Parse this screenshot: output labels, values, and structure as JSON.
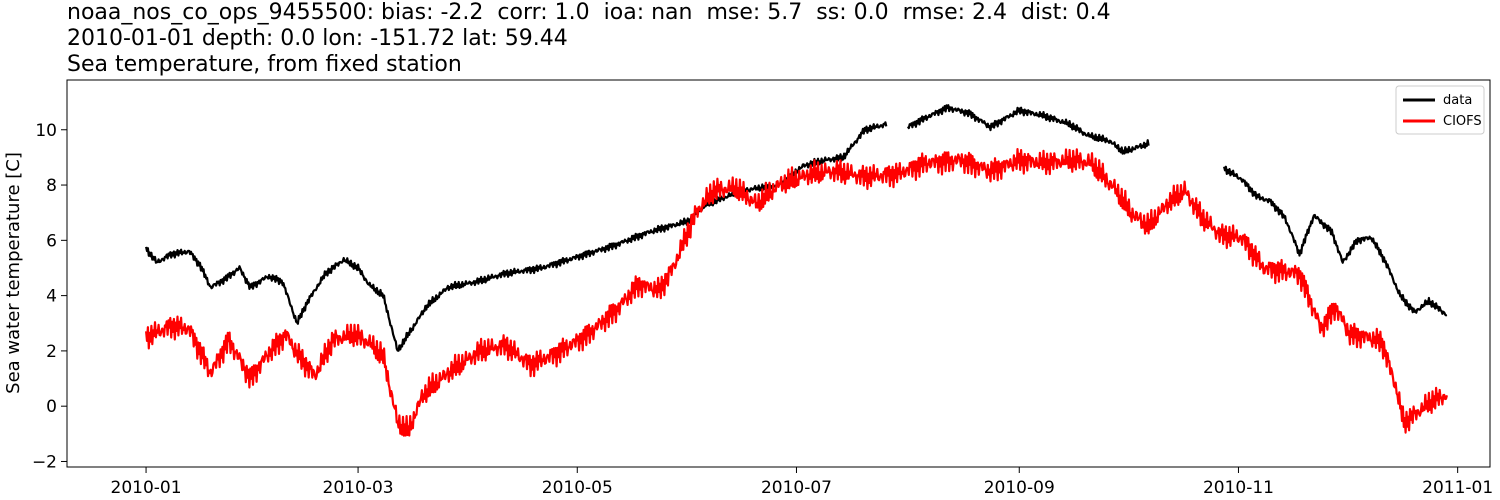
{
  "header": {
    "line1": "noaa_nos_co_ops_9455500: bias: -2.2  corr: 1.0  ioa: nan  mse: 5.7  ss: 0.0  rmse: 2.4  dist: 0.4",
    "line2": "2010-01-01 depth: 0.0 lon: -151.72 lat: 59.44",
    "line3": "Sea temperature, from fixed station"
  },
  "chart_data": {
    "type": "line",
    "title": "noaa_nos_co_ops_9455500: bias: -2.2  corr: 1.0  ioa: nan  mse: 5.7  ss: 0.0  rmse: 2.4  dist: 0.4 / 2010-01-01 depth: 0.0 lon: -151.72 lat: 59.44 / Sea temperature, from fixed station",
    "xlabel": "",
    "ylabel": "Sea water temperature [C]",
    "xlim": [
      "2009-12-10",
      "2011-01-10"
    ],
    "ylim": [
      -2.2,
      11.8
    ],
    "x_ticks": [
      "2010-01",
      "2010-03",
      "2010-05",
      "2010-07",
      "2010-09",
      "2010-11",
      "2011-01"
    ],
    "y_ticks": [
      -2,
      0,
      2,
      4,
      6,
      8,
      10
    ],
    "grid": false,
    "legend_position": "top-right",
    "series": [
      {
        "name": "data",
        "color": "#000000",
        "noise": 0.3,
        "segments": [
          [
            [
              "2010-01-01",
              5.7
            ],
            [
              "2010-01-04",
              5.2
            ],
            [
              "2010-01-08",
              5.5
            ],
            [
              "2010-01-13",
              5.6
            ],
            [
              "2010-01-16",
              5.1
            ],
            [
              "2010-01-19",
              4.3
            ],
            [
              "2010-01-23",
              4.6
            ],
            [
              "2010-01-27",
              5.0
            ],
            [
              "2010-01-30",
              4.3
            ],
            [
              "2010-02-04",
              4.7
            ],
            [
              "2010-02-08",
              4.5
            ],
            [
              "2010-02-12",
              3.0
            ],
            [
              "2010-02-15",
              3.8
            ],
            [
              "2010-02-20",
              4.8
            ],
            [
              "2010-02-25",
              5.3
            ],
            [
              "2010-03-01",
              5.0
            ],
            [
              "2010-03-04",
              4.4
            ],
            [
              "2010-03-08",
              4.0
            ],
            [
              "2010-03-12",
              2.0
            ],
            [
              "2010-03-15",
              2.6
            ],
            [
              "2010-03-20",
              3.6
            ],
            [
              "2010-03-26",
              4.3
            ],
            [
              "2010-04-03",
              4.5
            ],
            [
              "2010-04-11",
              4.8
            ],
            [
              "2010-04-21",
              5.0
            ],
            [
              "2010-05-01",
              5.4
            ],
            [
              "2010-05-11",
              5.8
            ],
            [
              "2010-05-21",
              6.3
            ],
            [
              "2010-06-01",
              6.7
            ],
            [
              "2010-06-06",
              7.3
            ],
            [
              "2010-06-16",
              7.8
            ],
            [
              "2010-06-26",
              8.0
            ],
            [
              "2010-07-03",
              8.7
            ],
            [
              "2010-07-09",
              8.9
            ],
            [
              "2010-07-14",
              9.0
            ],
            [
              "2010-07-20",
              10.0
            ],
            [
              "2010-07-26",
              10.2
            ]
          ],
          [
            [
              "2010-08-01",
              10.1
            ],
            [
              "2010-08-07",
              10.5
            ],
            [
              "2010-08-12",
              10.8
            ],
            [
              "2010-08-18",
              10.6
            ],
            [
              "2010-08-24",
              10.1
            ],
            [
              "2010-09-01",
              10.7
            ],
            [
              "2010-09-08",
              10.5
            ],
            [
              "2010-09-15",
              10.2
            ],
            [
              "2010-09-20",
              9.8
            ],
            [
              "2010-09-26",
              9.6
            ],
            [
              "2010-09-30",
              9.2
            ],
            [
              "2010-10-07",
              9.5
            ]
          ],
          [
            [
              "2010-10-28",
              8.6
            ],
            [
              "2010-11-02",
              8.2
            ],
            [
              "2010-11-06",
              7.6
            ],
            [
              "2010-11-10",
              7.4
            ],
            [
              "2010-11-14",
              6.8
            ],
            [
              "2010-11-18",
              5.5
            ],
            [
              "2010-11-22",
              6.9
            ],
            [
              "2010-11-27",
              6.3
            ],
            [
              "2010-11-30",
              5.2
            ],
            [
              "2010-12-04",
              6.0
            ],
            [
              "2010-12-08",
              6.1
            ],
            [
              "2010-12-12",
              5.2
            ],
            [
              "2010-12-16",
              4.0
            ],
            [
              "2010-12-20",
              3.4
            ],
            [
              "2010-12-24",
              3.8
            ],
            [
              "2010-12-29",
              3.3
            ]
          ]
        ]
      },
      {
        "name": "CIOFS",
        "color": "#ff0000",
        "noise": 1.0,
        "segments": [
          [
            [
              "2010-01-01",
              2.5
            ],
            [
              "2010-01-08",
              2.9
            ],
            [
              "2010-01-13",
              2.8
            ],
            [
              "2010-01-19",
              1.2
            ],
            [
              "2010-01-24",
              2.4
            ],
            [
              "2010-01-30",
              1.0
            ],
            [
              "2010-02-04",
              1.9
            ],
            [
              "2010-02-09",
              2.6
            ],
            [
              "2010-02-12",
              1.9
            ],
            [
              "2010-02-17",
              1.1
            ],
            [
              "2010-02-22",
              2.4
            ],
            [
              "2010-02-28",
              2.6
            ],
            [
              "2010-03-04",
              2.3
            ],
            [
              "2010-03-08",
              1.8
            ],
            [
              "2010-03-12",
              -0.6
            ],
            [
              "2010-03-15",
              -0.9
            ],
            [
              "2010-03-19",
              0.4
            ],
            [
              "2010-03-26",
              1.2
            ],
            [
              "2010-04-04",
              2.0
            ],
            [
              "2010-04-11",
              2.2
            ],
            [
              "2010-04-18",
              1.5
            ],
            [
              "2010-04-25",
              1.9
            ],
            [
              "2010-05-04",
              2.6
            ],
            [
              "2010-05-12",
              3.5
            ],
            [
              "2010-05-18",
              4.4
            ],
            [
              "2010-05-24",
              4.2
            ],
            [
              "2010-05-28",
              5.1
            ],
            [
              "2010-06-03",
              7.0
            ],
            [
              "2010-06-08",
              7.8
            ],
            [
              "2010-06-14",
              7.9
            ],
            [
              "2010-06-20",
              7.3
            ],
            [
              "2010-06-26",
              8.0
            ],
            [
              "2010-07-05",
              8.4
            ],
            [
              "2010-07-12",
              8.5
            ],
            [
              "2010-07-20",
              8.3
            ],
            [
              "2010-07-29",
              8.4
            ],
            [
              "2010-08-06",
              8.8
            ],
            [
              "2010-08-16",
              8.9
            ],
            [
              "2010-08-24",
              8.5
            ],
            [
              "2010-09-01",
              8.9
            ],
            [
              "2010-09-08",
              8.8
            ],
            [
              "2010-09-16",
              8.9
            ],
            [
              "2010-09-21",
              8.8
            ],
            [
              "2010-09-28",
              7.8
            ],
            [
              "2010-10-02",
              7.0
            ],
            [
              "2010-10-07",
              6.5
            ],
            [
              "2010-10-12",
              7.3
            ],
            [
              "2010-10-17",
              7.8
            ],
            [
              "2010-10-22",
              6.8
            ],
            [
              "2010-10-27",
              6.2
            ],
            [
              "2010-11-02",
              6.1
            ],
            [
              "2010-11-08",
              5.0
            ],
            [
              "2010-11-13",
              4.9
            ],
            [
              "2010-11-18",
              4.8
            ],
            [
              "2010-11-24",
              2.8
            ],
            [
              "2010-11-28",
              3.6
            ],
            [
              "2010-12-02",
              2.6
            ],
            [
              "2010-12-07",
              2.5
            ],
            [
              "2010-12-11",
              2.3
            ],
            [
              "2010-12-15",
              0.6
            ],
            [
              "2010-12-17",
              -0.6
            ],
            [
              "2010-12-21",
              -0.2
            ],
            [
              "2010-12-25",
              0.2
            ],
            [
              "2010-12-29",
              0.4
            ]
          ]
        ]
      }
    ]
  }
}
